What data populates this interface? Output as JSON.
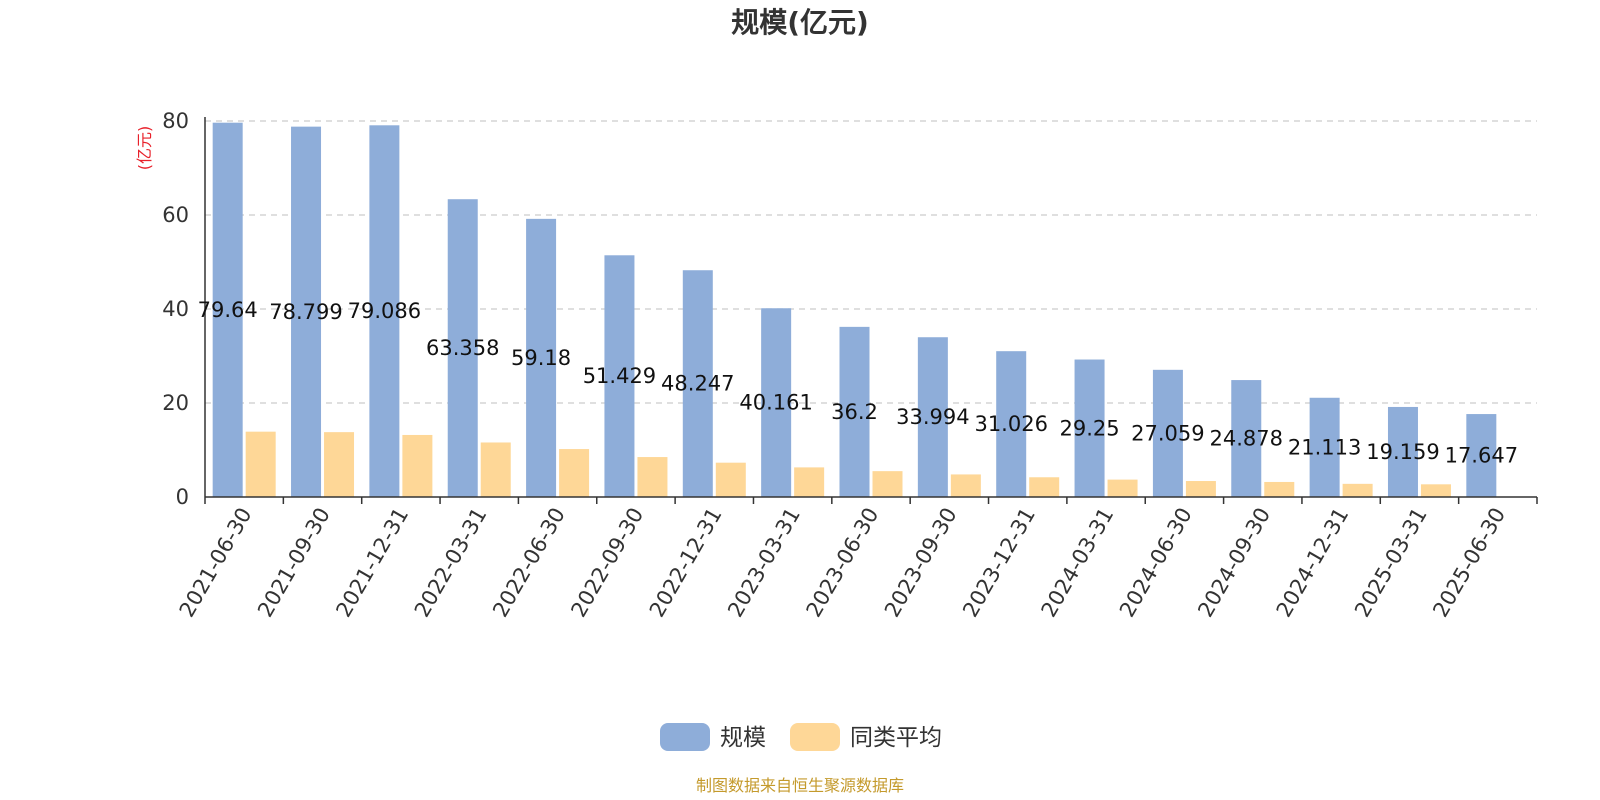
{
  "colors": {
    "series_main": "#8eadd9",
    "series_avg": "#fed797",
    "unit_label": "#e8202a",
    "source_text": "#c49a2c",
    "axis": "#333333",
    "grid": "#cccccc"
  },
  "source_note": "制图数据来自恒生聚源数据库",
  "chart_data": {
    "type": "bar",
    "title": "规模(亿元)",
    "ylabel": "(亿元)",
    "xlabel": "",
    "ylim": [
      0,
      80
    ],
    "yticks": [
      0,
      20,
      40,
      60,
      80
    ],
    "grid": "horizontal dashed",
    "legend_position": "bottom-center",
    "categories": [
      "2021-06-30",
      "2021-09-30",
      "2021-12-31",
      "2022-03-31",
      "2022-06-30",
      "2022-09-30",
      "2022-12-31",
      "2023-03-31",
      "2023-06-30",
      "2023-09-30",
      "2023-12-31",
      "2024-03-31",
      "2024-06-30",
      "2024-09-30",
      "2024-12-31",
      "2025-03-31",
      "2025-06-30"
    ],
    "series": [
      {
        "name": "规模",
        "values": [
          79.64,
          78.799,
          79.086,
          63.358,
          59.18,
          51.429,
          48.247,
          40.161,
          36.2,
          33.994,
          31.026,
          29.25,
          27.059,
          24.878,
          21.113,
          19.159,
          17.647
        ],
        "labels": [
          "79.64",
          "78.799",
          "79.086",
          "63.358",
          "59.18",
          "51.429",
          "48.247",
          "40.161",
          "36.2",
          "33.994",
          "31.026",
          "29.25",
          "27.059",
          "24.878",
          "21.113",
          "19.159",
          "17.647"
        ]
      },
      {
        "name": "同类平均",
        "values": [
          13.9,
          13.8,
          13.2,
          11.6,
          10.2,
          8.5,
          7.3,
          6.3,
          5.5,
          4.8,
          4.2,
          3.7,
          3.4,
          3.2,
          2.8,
          2.7,
          null
        ]
      }
    ]
  }
}
